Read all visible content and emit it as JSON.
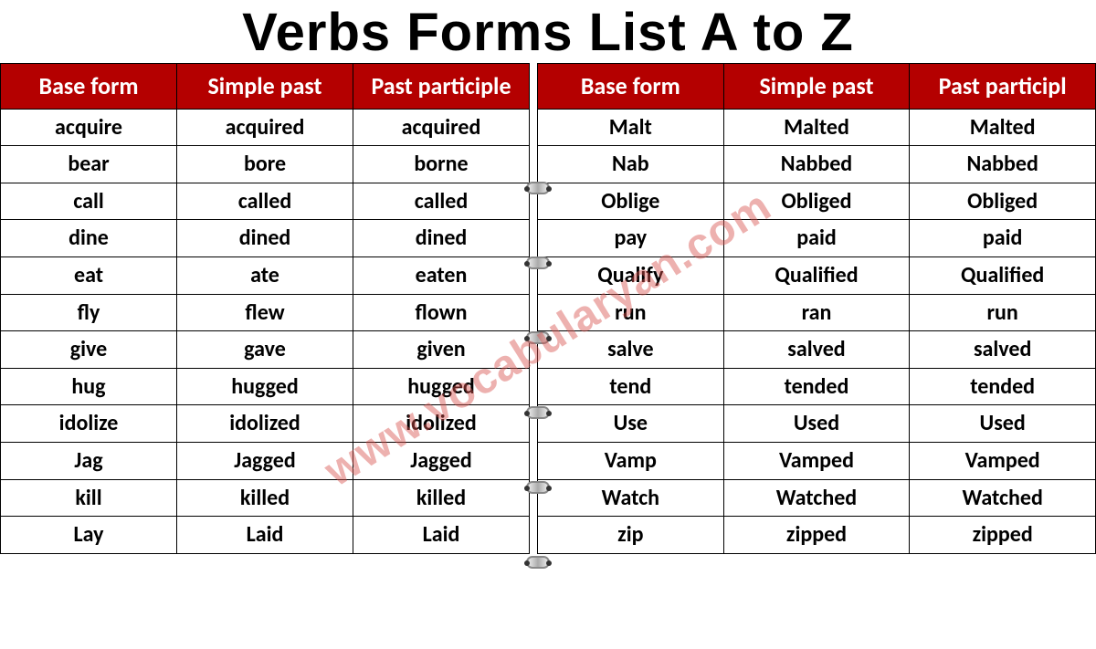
{
  "title": "Verbs Forms List A to Z",
  "watermark": "www.vocabularyan.com",
  "watermark_color": "#d9534f",
  "header_bg": "#b40000",
  "header_fg": "#ffffff",
  "columns": [
    "Base form",
    "Simple past",
    "Past participle"
  ],
  "columns_right_last": "Past participl",
  "left_rows": [
    [
      "acquire",
      "acquired",
      "acquired"
    ],
    [
      "bear",
      "bore",
      "borne"
    ],
    [
      "call",
      "called",
      "called"
    ],
    [
      "dine",
      "dined",
      "dined"
    ],
    [
      "eat",
      "ate",
      "eaten"
    ],
    [
      "fly",
      "flew",
      "flown"
    ],
    [
      "give",
      "gave",
      "given"
    ],
    [
      "hug",
      "hugged",
      "hugged"
    ],
    [
      "idolize",
      "idolized",
      "idolized"
    ],
    [
      "Jag",
      "Jagged",
      "Jagged"
    ],
    [
      "kill",
      "killed",
      "killed"
    ],
    [
      "Lay",
      "Laid",
      "Laid"
    ]
  ],
  "right_rows": [
    [
      "Malt",
      "Malted",
      "Malted"
    ],
    [
      "Nab",
      "Nabbed",
      "Nabbed"
    ],
    [
      "Oblige",
      "Obliged",
      "Obliged"
    ],
    [
      "pay",
      "paid",
      "paid"
    ],
    [
      "Qualify",
      "Qualified",
      "Qualified"
    ],
    [
      "run",
      "ran",
      "run"
    ],
    [
      "salve",
      "salved",
      "salved"
    ],
    [
      "tend",
      "tended",
      "tended"
    ],
    [
      "Use",
      "Used",
      "Used"
    ],
    [
      "Vamp",
      "Vamped",
      "Vamped"
    ],
    [
      "Watch",
      "Watched",
      "Watched"
    ],
    [
      "zip",
      "zipped",
      "zipped"
    ]
  ],
  "spiral_ring_count": 6
}
